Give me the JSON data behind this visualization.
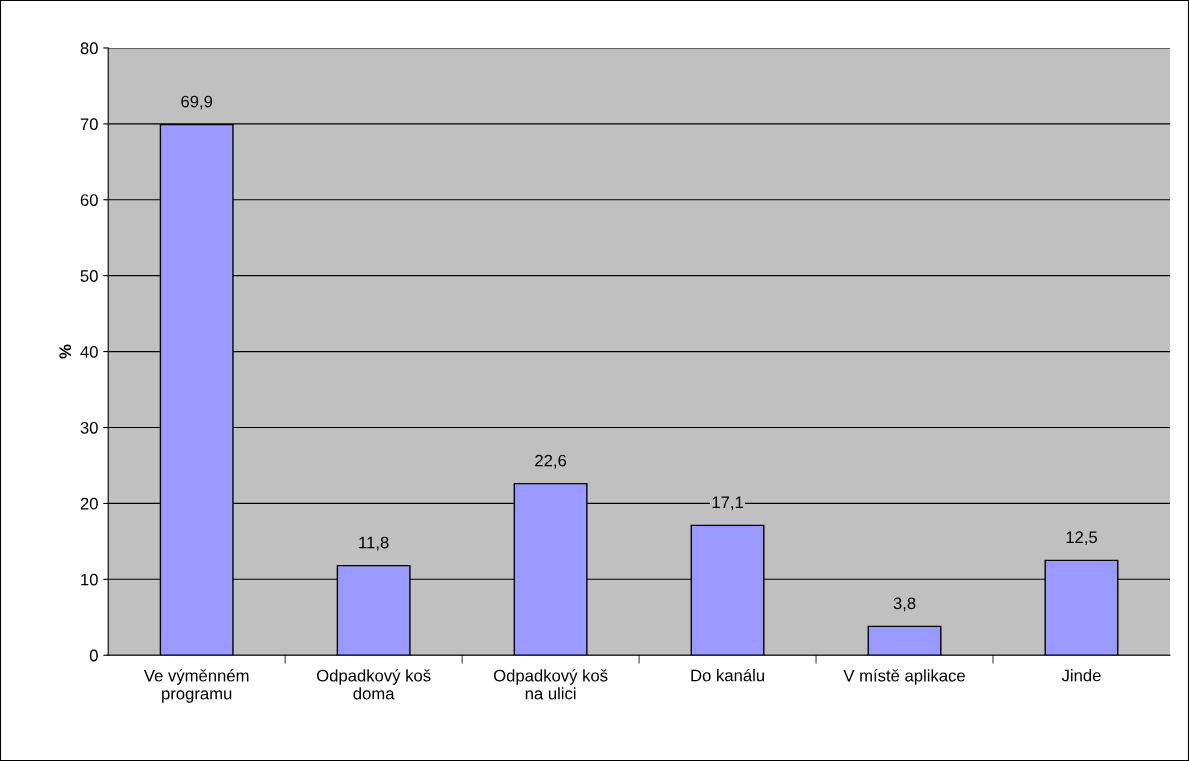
{
  "chart_data": {
    "type": "bar",
    "ylabel": "%",
    "categories": [
      "Ve výměnném\nprogramu",
      "Odpadkový koš\ndoma",
      "Odpadkový koš\nna ulici",
      "Do kanálu",
      "V místě aplikace",
      "Jinde"
    ],
    "values": [
      69.9,
      11.8,
      22.6,
      17.1,
      3.8,
      12.5
    ],
    "value_labels": [
      "69,9",
      "11,8",
      "22,6",
      "17,1",
      "3,8",
      "12,5"
    ],
    "color": "#9999ff",
    "ylim": [
      0,
      80
    ],
    "yticks": [
      0,
      10,
      20,
      30,
      40,
      50,
      60,
      70,
      80
    ],
    "grid": "y",
    "legend": false
  }
}
